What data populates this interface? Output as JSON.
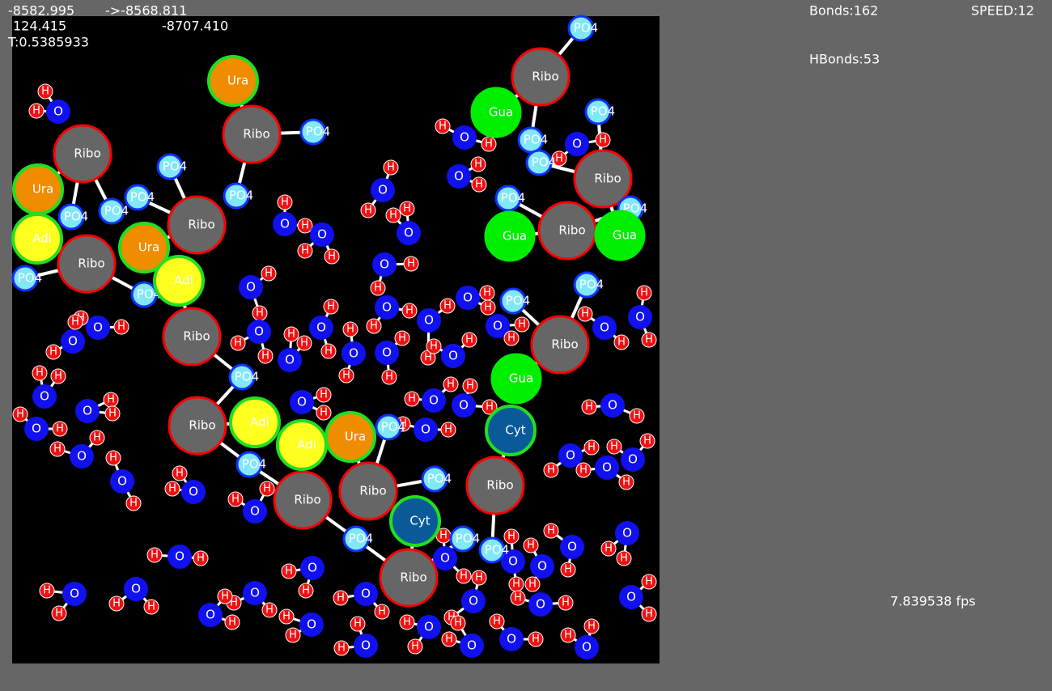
{
  "hud": {
    "energy": "-8582.995",
    "energy_target": "->-8568.811",
    "value_a": "124.415",
    "value_b": "-8707.410",
    "temperature": "T:0.5385933",
    "bonds": "Bonds:162",
    "speed": "SPEED:12",
    "hbonds": "HBonds:53",
    "fps": "7.839538 fps"
  },
  "nucleotide_atoms": [
    "Ribo",
    "Ribo",
    "Ribo",
    "Ribo",
    "Ribo",
    "Ribo",
    "Ribo",
    "Ribo",
    "Ribo",
    "Ribo",
    "Ribo",
    "Ribo",
    "Ribo",
    "Ribo",
    "PO4",
    "PO4",
    "PO4",
    "PO4",
    "PO4",
    "PO4",
    "PO4",
    "PO4",
    "PO4",
    "PO4",
    "PO4",
    "PO4",
    "PO4",
    "PO4",
    "PO4",
    "PO4",
    "PO4",
    "PO4",
    "PO4",
    "PO4",
    "PO4",
    "PO4",
    "PO4",
    "Ura",
    "Ura",
    "Ura",
    "Ura",
    "Adi",
    "Adi",
    "Adi",
    "Adi",
    "Gua",
    "Gua",
    "Gua",
    "Gua",
    "Cyt",
    "Cyt"
  ],
  "water_atoms": [
    [
      "O",
      "H",
      "H"
    ],
    [
      "O",
      "H",
      "H"
    ],
    [
      "O",
      "H",
      "H"
    ],
    [
      "O",
      "H",
      "H"
    ],
    [
      "O",
      "H",
      "H"
    ],
    [
      "O",
      "H",
      "H"
    ],
    [
      "O",
      "H",
      "H"
    ],
    [
      "O",
      "H",
      "H"
    ],
    [
      "O",
      "H",
      "H"
    ],
    [
      "O",
      "H",
      "H"
    ],
    [
      "O",
      "H",
      "H"
    ],
    [
      "O",
      "H",
      "H"
    ],
    [
      "O",
      "H",
      "H"
    ],
    [
      "O",
      "H",
      "H"
    ],
    [
      "O",
      "H",
      "H"
    ],
    [
      "O",
      "H",
      "H"
    ],
    [
      "O",
      "H",
      "H"
    ],
    [
      "O",
      "H",
      "H"
    ],
    [
      "O",
      "H",
      "H"
    ],
    [
      "O",
      "H",
      "H"
    ],
    [
      "O",
      "H",
      "H"
    ],
    [
      "O",
      "H",
      "H"
    ],
    [
      "O",
      "H",
      "H"
    ],
    [
      "O",
      "H",
      "H"
    ],
    [
      "O",
      "H",
      "H"
    ],
    [
      "O",
      "H",
      "H"
    ],
    [
      "O",
      "H",
      "H"
    ],
    [
      "O",
      "H",
      "H"
    ],
    [
      "O",
      "H",
      "H"
    ],
    [
      "O",
      "H",
      "H"
    ],
    [
      "O",
      "H",
      "H"
    ],
    [
      "O",
      "H",
      "H"
    ],
    [
      "O",
      "H",
      "H"
    ],
    [
      "O",
      "H",
      "H"
    ],
    [
      "O",
      "H",
      "H"
    ],
    [
      "O",
      "H",
      "H"
    ],
    [
      "O",
      "H",
      "H"
    ],
    [
      "O",
      "H",
      "H"
    ],
    [
      "O",
      "H",
      "H"
    ],
    [
      "O",
      "H",
      "H"
    ],
    [
      "O",
      "H",
      "H"
    ],
    [
      "O",
      "H",
      "H"
    ],
    [
      "O",
      "H",
      "H"
    ],
    [
      "O",
      "H",
      "H"
    ],
    [
      "O",
      "H",
      "H"
    ],
    [
      "O",
      "H",
      "H"
    ],
    [
      "O",
      "H",
      "H"
    ],
    [
      "O",
      "H",
      "H"
    ],
    [
      "O",
      "H",
      "H"
    ],
    [
      "O",
      "H",
      "H"
    ],
    [
      "O",
      "H",
      "H"
    ],
    [
      "O",
      "H",
      "H"
    ],
    [
      "O",
      "H",
      "H"
    ],
    [
      "O",
      "H",
      "H"
    ],
    [
      "O",
      "H",
      "H"
    ],
    [
      "O",
      "H",
      "H"
    ],
    [
      "O",
      "H",
      "H"
    ],
    [
      "O",
      "H",
      "H"
    ],
    [
      "O",
      "H",
      "H"
    ],
    [
      "O",
      "H",
      "H"
    ]
  ]
}
